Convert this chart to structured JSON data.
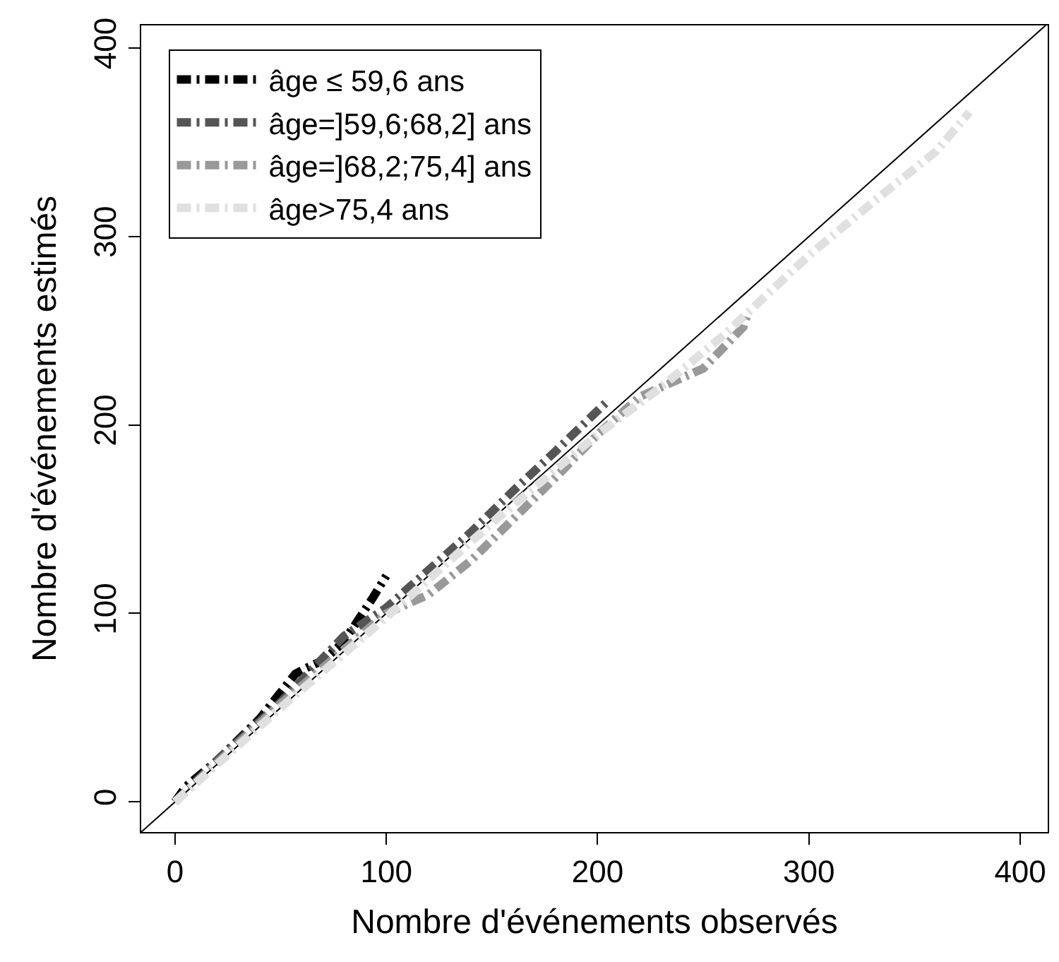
{
  "chart_data": {
    "type": "line",
    "xlabel": "Nombre d'événements observés",
    "ylabel": "Nombre d'événements estimés",
    "xlim": [
      -16,
      413
    ],
    "ylim": [
      -16,
      412
    ],
    "xticks": [
      0,
      100,
      200,
      300,
      400
    ],
    "yticks": [
      0,
      100,
      200,
      300,
      400
    ],
    "legend": "top left",
    "line_style": "dashed",
    "marker": "none",
    "series": [
      {
        "name": "âge ≤ 59,6 ans",
        "color": "#000000",
        "x": [
          0,
          5,
          20,
          40,
          57,
          62,
          70,
          78,
          84,
          94,
          100
        ],
        "values": [
          0,
          8,
          22,
          44,
          68,
          71,
          75,
          83,
          92,
          109,
          120
        ]
      },
      {
        "name": "âge=]59,6;68,2] ans",
        "color": "#555555",
        "x": [
          0,
          20,
          50,
          80,
          100,
          120,
          140,
          160,
          180,
          205
        ],
        "values": [
          0,
          22,
          53,
          88,
          103,
          123,
          143,
          165,
          186,
          213
        ]
      },
      {
        "name": "âge=]68,2;75,4] ans",
        "color": "#999999",
        "x": [
          0,
          50,
          100,
          120,
          140,
          160,
          180,
          200,
          220,
          250,
          269,
          271
        ],
        "values": [
          0,
          52,
          100,
          110,
          128,
          150,
          172,
          195,
          215,
          230,
          252,
          259
        ]
      },
      {
        "name": "âge>75,4 ans",
        "color": "#e0e0e0",
        "x": [
          0,
          50,
          100,
          150,
          200,
          230,
          260,
          300,
          330,
          360,
          376
        ],
        "values": [
          0,
          50,
          98,
          148,
          195,
          220,
          248,
          290,
          318,
          345,
          366
        ]
      },
      {
        "type": "line",
        "color": "#000000",
        "line_style": "solid",
        "x": [
          -16,
          412
        ],
        "values": [
          -16,
          412
        ]
      }
    ]
  }
}
